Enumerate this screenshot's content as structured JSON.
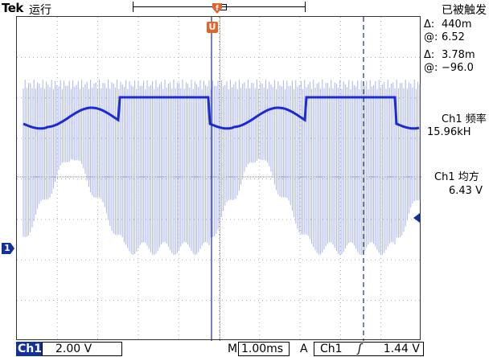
{
  "header": {
    "brand": "Tek",
    "run_state": "运行",
    "trigger_state": "已被触发"
  },
  "trigger": {
    "position_marker": "U",
    "channel_marker": "1"
  },
  "readouts": {
    "delta1_label": "Δ:",
    "delta1_value": "440m",
    "at1_label": "@:",
    "at1_value": "6.52",
    "delta2_label": "Δ:",
    "delta2_value": "3.78m",
    "at2_label": "@:",
    "at2_value": "−96.0",
    "meas1_title": "Ch1 频率",
    "meas1_value": "15.96kH",
    "meas2_title": "Ch1 均方",
    "meas2_value": "6.43 V"
  },
  "footer": {
    "channel": "Ch1",
    "volts_per_div": "2.00 V",
    "time_prefix": "M",
    "time_per_div": "1.00ms",
    "trigger_mode": "A",
    "trigger_source": "Ch1",
    "trigger_slope": "ʃ",
    "trigger_level": "1.44 V"
  },
  "colors": {
    "trace": "#1a2bd6",
    "trace_light": "#9aa6ee",
    "cursor": "#1a2b9a",
    "trigger_marker": "#e8632a",
    "badge": "#14309a"
  }
}
